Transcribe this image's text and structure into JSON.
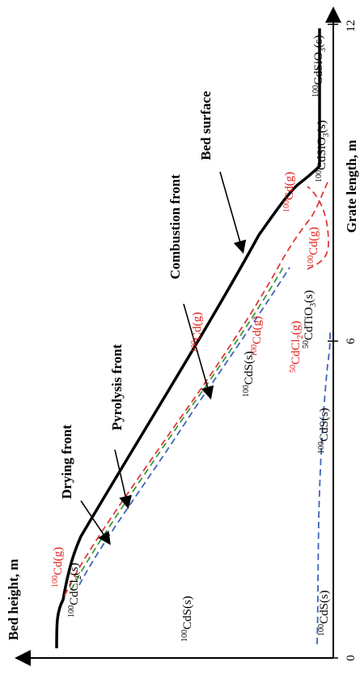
{
  "axes": {
    "x_title": "Grate length, m",
    "y_title": "Bed height, m",
    "x_ticks": [
      "0",
      "6",
      "12"
    ]
  },
  "fronts": {
    "bed_surface": "Bed surface",
    "combustion": "Combustion front",
    "pyrolysis": "Pyrolysis front",
    "drying": "Drying front"
  },
  "species": {
    "cd_g_1": {
      "sup": "100",
      "base": "Cd(g)"
    },
    "cdcl2_s_1": {
      "sup": "100",
      "base": "CdCl",
      "sub": "2",
      "tail": "(s)"
    },
    "cds_s_upper": {
      "sup": "100",
      "base": "CdS(s)"
    },
    "cds_s_lower": {
      "sup": "100",
      "base": "CdS(s)"
    },
    "cd_g_2": {
      "sup": "100",
      "base": "Cd(g)"
    },
    "cds_s_mid": {
      "sup": "100",
      "base": "CdS(s)"
    },
    "cd_g_3": {
      "sup": "100",
      "base": "Cd(g)"
    },
    "cds_s_mid2": {
      "sup": "100",
      "base": "CdS(s)"
    },
    "cdcl2_g_50": {
      "sup": "50",
      "base": "CdCl",
      "sub": "2",
      "tail": "(g)"
    },
    "cdtio3_s": {
      "sup": "50",
      "base": "CdTiO",
      "sub": "3",
      "tail": "(s)"
    },
    "cd_g_4": {
      "sup": "100",
      "base": "Cd(g)"
    },
    "cd_g_5": {
      "sup": "100",
      "base": "Cd(g)"
    },
    "cdsio3_s_1": {
      "sup": "100",
      "base": "CdSiO",
      "sub": "3",
      "tail": "(s)"
    },
    "cdsio3_s_2": {
      "sup": "100",
      "base": "CdSiO",
      "sub": "3",
      "tail": "(s)"
    }
  },
  "colors": {
    "bed_surface": "#000000",
    "red_front": "#e0383b",
    "green_front": "#3a9b3a",
    "blue_front": "#3f63b8",
    "red_label": "#e0201c"
  }
}
